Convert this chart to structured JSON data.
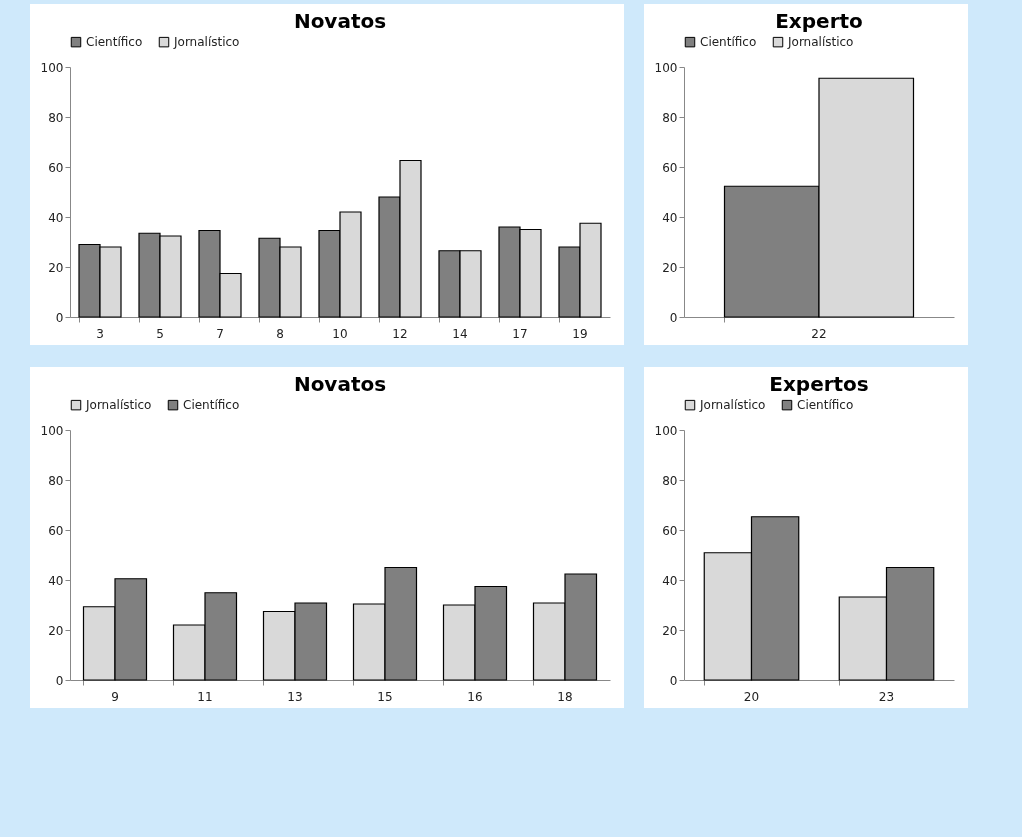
{
  "chart_data": [
    {
      "type": "bar",
      "title": "Novatos",
      "categories": [
        "3",
        "5",
        "7",
        "8",
        "10",
        "12",
        "14",
        "17",
        "19"
      ],
      "series": [
        {
          "name": "Científico",
          "color": "#808080",
          "values": [
            29,
            33.5,
            34.6,
            31.5,
            34.6,
            48,
            26.5,
            36,
            28
          ]
        },
        {
          "name": "Jornalístico",
          "color": "#d9d9d9",
          "values": [
            28,
            32.4,
            17.4,
            28,
            42,
            62.6,
            26.5,
            35,
            37.5
          ]
        }
      ],
      "ylim": [
        0,
        100
      ],
      "yticks": [
        0,
        20,
        40,
        60,
        80,
        100
      ],
      "grid": false,
      "legend": "top"
    },
    {
      "type": "bar",
      "title": "Experto",
      "categories": [
        "22"
      ],
      "series": [
        {
          "name": "Científico",
          "color": "#808080",
          "values": [
            52.3
          ]
        },
        {
          "name": "Jornalístico",
          "color": "#d9d9d9",
          "values": [
            95.5
          ]
        }
      ],
      "ylim": [
        0,
        100
      ],
      "yticks": [
        0,
        20,
        40,
        60,
        80,
        100
      ],
      "grid": false,
      "legend": "top"
    },
    {
      "type": "bar",
      "title": "Novatos",
      "categories": [
        "9",
        "11",
        "13",
        "15",
        "16",
        "18"
      ],
      "series": [
        {
          "name": "Jornalístico",
          "color": "#d9d9d9",
          "values": [
            29.3,
            22,
            27.4,
            30.4,
            30,
            30.8
          ]
        },
        {
          "name": "Científico",
          "color": "#808080",
          "values": [
            40.5,
            34.9,
            30.8,
            45,
            37.4,
            42.4
          ]
        }
      ],
      "ylim": [
        0,
        100
      ],
      "yticks": [
        0,
        20,
        40,
        60,
        80,
        100
      ],
      "grid": false,
      "legend": "top"
    },
    {
      "type": "bar",
      "title": "Expertos",
      "categories": [
        "20",
        "23"
      ],
      "series": [
        {
          "name": "Jornalístico",
          "color": "#d9d9d9",
          "values": [
            50.9,
            33.2
          ]
        },
        {
          "name": "Científico",
          "color": "#808080",
          "values": [
            65.3,
            45
          ]
        }
      ],
      "ylim": [
        0,
        100
      ],
      "yticks": [
        0,
        20,
        40,
        60,
        80,
        100
      ],
      "grid": false,
      "legend": "top"
    }
  ]
}
